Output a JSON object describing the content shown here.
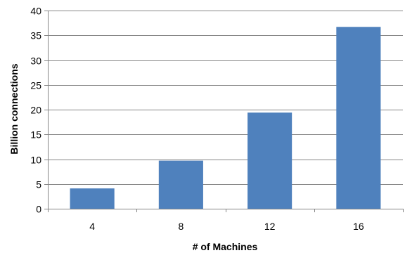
{
  "chart_data": {
    "type": "bar",
    "title": "",
    "xlabel": "# of Machines",
    "ylabel": "Billion connections",
    "categories": [
      "4",
      "8",
      "12",
      "16"
    ],
    "values": [
      4.1,
      9.7,
      19.4,
      36.7
    ],
    "ylim": [
      0,
      40
    ],
    "yticks": [
      0,
      5,
      10,
      15,
      20,
      25,
      30,
      35,
      40
    ],
    "ytick_labels": [
      "0",
      "5",
      "10",
      "15",
      "20",
      "25",
      "30",
      "35",
      "40"
    ],
    "grid": true,
    "legend": "none",
    "colors": {
      "bar": "#4F81BD",
      "grid": "#868686",
      "axis": "#868686"
    }
  }
}
